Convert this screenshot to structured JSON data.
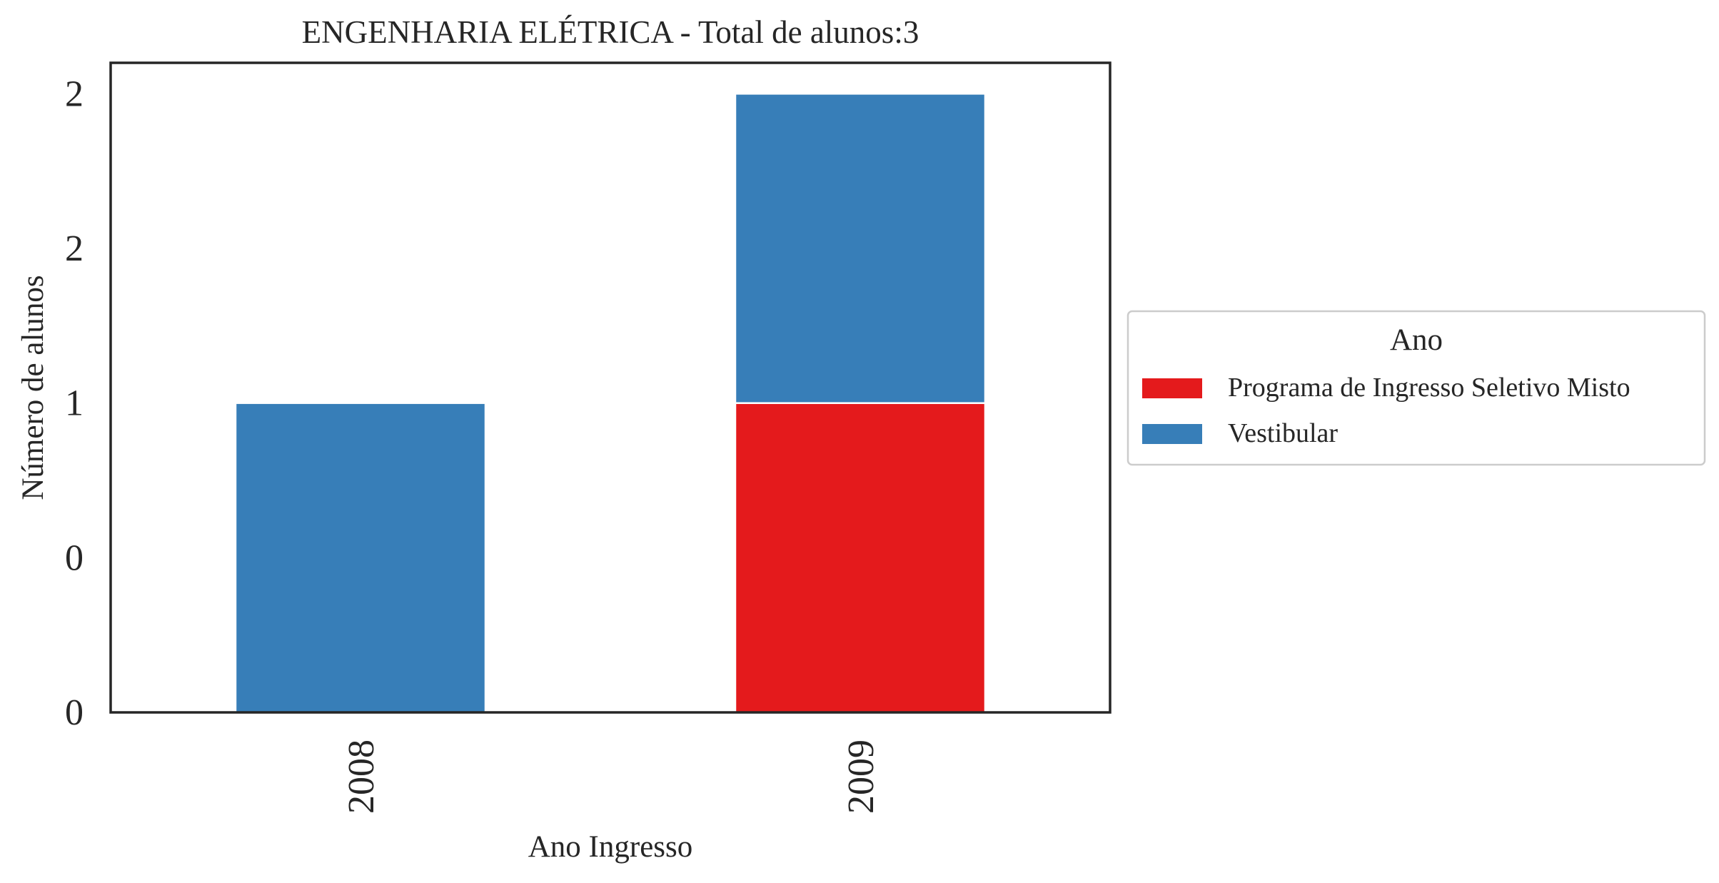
{
  "chart_data": {
    "type": "bar",
    "stacked": true,
    "title": "ENGENHARIA ELÉTRICA - Total de alunos:3",
    "xlabel": "Ano Ingresso",
    "ylabel": "Número de alunos",
    "categories": [
      "2008",
      "2009"
    ],
    "series": [
      {
        "name": "Programa de Ingresso Seletivo Misto",
        "values": [
          0,
          1
        ],
        "color": "#e41a1c"
      },
      {
        "name": "Vestibular",
        "values": [
          1,
          1
        ],
        "color": "#377eb8"
      }
    ],
    "ylim": [
      0,
      2.1
    ],
    "yticks": [
      0,
      0.5,
      1,
      1.5,
      2
    ],
    "ytick_labels": [
      "0",
      "0",
      "1",
      "2",
      "2"
    ],
    "legend": {
      "title": "Ano",
      "placement": "center-right outside"
    },
    "grid": false
  }
}
